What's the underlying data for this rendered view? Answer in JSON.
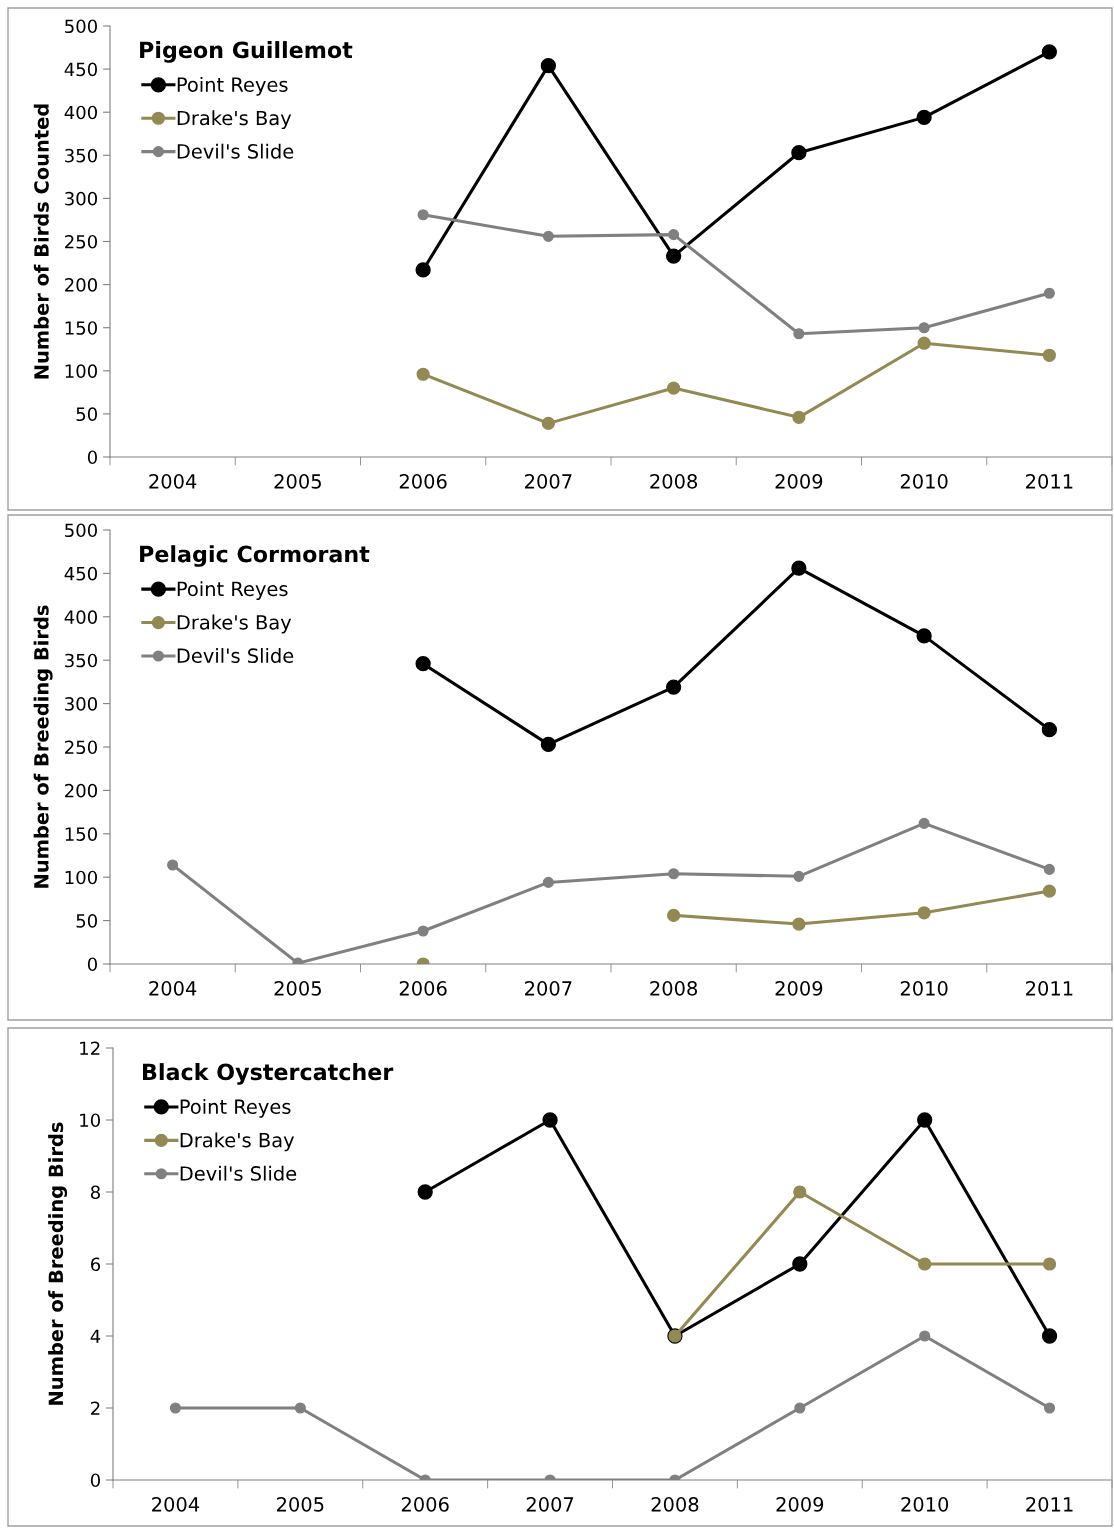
{
  "chart_data": [
    {
      "type": "line",
      "title": "Pigeon Guillemot",
      "ylabel": "Number of Birds Counted",
      "categories": [
        "2004",
        "2005",
        "2006",
        "2007",
        "2008",
        "2009",
        "2010",
        "2011"
      ],
      "ylim": [
        0,
        500
      ],
      "yticks": [
        0,
        50,
        100,
        150,
        200,
        250,
        300,
        350,
        400,
        450,
        500
      ],
      "legend": "top left",
      "marker": "circle",
      "grid": false,
      "series": [
        {
          "name": "Point Reyes",
          "color": "#000000",
          "values": [
            null,
            null,
            217,
            454,
            233,
            353,
            394,
            470
          ]
        },
        {
          "name": "Drake's Bay",
          "color": "#938953",
          "values": [
            null,
            null,
            96,
            39,
            80,
            46,
            132,
            118
          ]
        },
        {
          "name": "Devil's Slide",
          "color": "#808080",
          "values": [
            null,
            null,
            281,
            256,
            258,
            143,
            150,
            190
          ]
        }
      ]
    },
    {
      "type": "line",
      "title": "Pelagic Cormorant",
      "ylabel": "Number of Breeding Birds",
      "categories": [
        "2004",
        "2005",
        "2006",
        "2007",
        "2008",
        "2009",
        "2010",
        "2011"
      ],
      "ylim": [
        0,
        500
      ],
      "yticks": [
        0,
        50,
        100,
        150,
        200,
        250,
        300,
        350,
        400,
        450,
        500
      ],
      "legend": "top left",
      "marker": "circle",
      "grid": false,
      "series": [
        {
          "name": "Point Reyes",
          "color": "#000000",
          "values": [
            null,
            null,
            346,
            253,
            319,
            456,
            378,
            270
          ]
        },
        {
          "name": "Drake's Bay",
          "color": "#938953",
          "values": [
            null,
            null,
            0,
            null,
            56,
            46,
            59,
            84
          ]
        },
        {
          "name": "Devil's Slide",
          "color": "#808080",
          "values": [
            114,
            1,
            38,
            94,
            104,
            101,
            162,
            109
          ]
        }
      ]
    },
    {
      "type": "line",
      "title": "Black Oystercatcher",
      "ylabel": "Number of Breeding Birds",
      "categories": [
        "2004",
        "2005",
        "2006",
        "2007",
        "2008",
        "2009",
        "2010",
        "2011"
      ],
      "ylim": [
        0,
        12
      ],
      "yticks": [
        0,
        2,
        4,
        6,
        8,
        10,
        12
      ],
      "legend": "top left",
      "marker": "circle",
      "grid": false,
      "series": [
        {
          "name": "Point Reyes",
          "color": "#000000",
          "values": [
            null,
            null,
            8,
            10,
            4,
            6,
            10,
            4
          ]
        },
        {
          "name": "Drake's Bay",
          "color": "#938953",
          "values": [
            null,
            null,
            null,
            null,
            4,
            8,
            6,
            6
          ]
        },
        {
          "name": "Devil's Slide",
          "color": "#808080",
          "values": [
            2,
            2,
            0,
            0,
            0,
            2,
            4,
            2
          ]
        }
      ]
    }
  ]
}
